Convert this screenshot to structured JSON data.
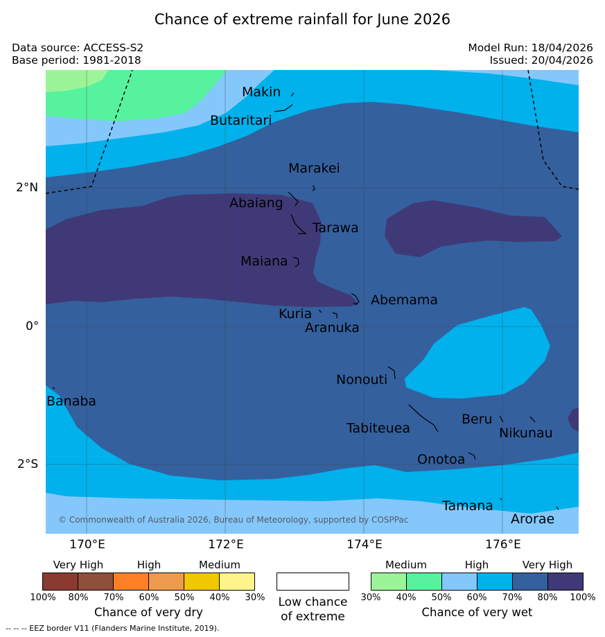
{
  "title": "Chance of extreme rainfall for June 2026",
  "meta": {
    "data_source": "Data source: ACCESS-S2",
    "base_period": "Base period: 1981-2018",
    "model_run": "Model Run: 18/04/2026",
    "issued": "Issued: 20/04/2026"
  },
  "axes": {
    "lat_labels": [
      "2°N",
      "0°",
      "2°S"
    ],
    "lon_labels": [
      "170°E",
      "172°E",
      "174°E",
      "176°E"
    ]
  },
  "places": [
    "Makin",
    "Butaritari",
    "Marakei",
    "Abaiang",
    "Tarawa",
    "Maiana",
    "Abemama",
    "Kuria",
    "Aranuka",
    "Nonouti",
    "Banaba",
    "Tabiteuea",
    "Beru",
    "Nikunau",
    "Onotoa",
    "Tamana",
    "Arorae"
  ],
  "copyright": "© Commonwealth of Australia 2026, Bureau of Meteorology, supported by COSPPac",
  "legend": {
    "dry": {
      "groups": [
        "Very High",
        "High",
        "Medium"
      ],
      "ticks": [
        "100%",
        "80%",
        "70%",
        "60%",
        "50%",
        "40%",
        "30%"
      ],
      "colors": [
        "#8b3a2f",
        "#8e4f3b",
        "#ff7f27",
        "#ee9a4d",
        "#f0c800",
        "#fdf58c"
      ],
      "title": "Chance of very dry"
    },
    "low": {
      "line1": "Low chance",
      "line2": "of extreme"
    },
    "wet": {
      "groups": [
        "Medium",
        "High",
        "Very High"
      ],
      "ticks": [
        "30%",
        "40%",
        "50%",
        "60%",
        "70%",
        "80%",
        "100%"
      ],
      "colors": [
        "#9bf598",
        "#56f29e",
        "#84c7fa",
        "#00b1ec",
        "#34609e",
        "#3f3a77"
      ],
      "title": "Chance of very wet"
    }
  },
  "eez_note": "--  --  -- EEZ border V11 (Flanders Marine Institute, 2019)."
}
